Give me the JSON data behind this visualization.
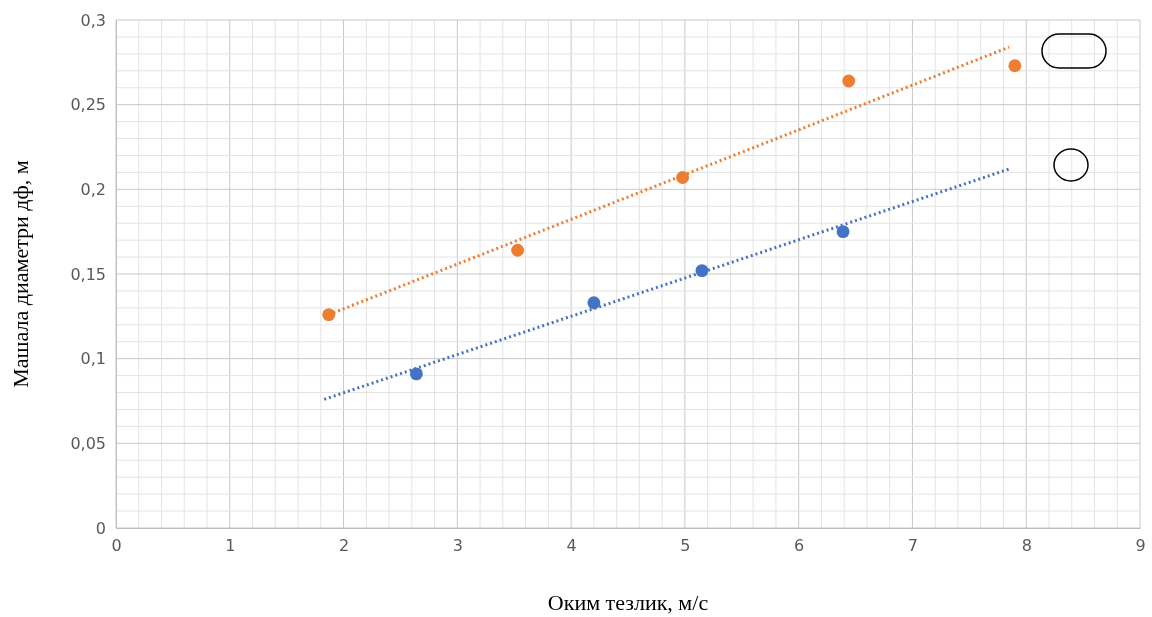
{
  "chart_data": {
    "type": "scatter",
    "xlabel": "Оким тезлик, м/с",
    "ylabel": "Машала диаметри дф, м",
    "xlim": [
      0,
      9
    ],
    "xticks": [
      0,
      1,
      2,
      3,
      4,
      5,
      6,
      7,
      8,
      9
    ],
    "ylim": [
      0,
      0.3
    ],
    "yticks": [
      0,
      {
        "value": 0.05,
        "label": "0,05"
      },
      {
        "value": 0.1,
        "label": "0,1"
      },
      {
        "value": 0.15,
        "label": "0,15"
      },
      {
        "value": 0.2,
        "label": "0,2"
      },
      {
        "value": 0.25,
        "label": "0,25"
      },
      {
        "value": 0.3,
        "label": "0,3"
      }
    ],
    "grid": true,
    "marker": "circle",
    "series": [
      {
        "color": "#ed7d31",
        "x": [
          1.87,
          3.53,
          4.98,
          6.44,
          7.9
        ],
        "values": [
          0.126,
          0.164,
          0.207,
          0.264,
          0.273
        ]
      },
      {
        "color": "#4472c4",
        "x": [
          2.64,
          4.2,
          5.15,
          6.39
        ],
        "values": [
          0.091,
          0.133,
          0.152,
          0.175
        ]
      },
      {
        "type": "line",
        "marker": "none",
        "color": "#ed7d31",
        "line_style": "dotted",
        "x": [
          1.87,
          7.85
        ],
        "values": [
          0.126,
          0.284
        ]
      },
      {
        "type": "line",
        "marker": "none",
        "color": "#4472c4",
        "line_style": "dotted",
        "x": [
          1.83,
          7.85
        ],
        "values": [
          0.076,
          0.212
        ]
      }
    ]
  }
}
